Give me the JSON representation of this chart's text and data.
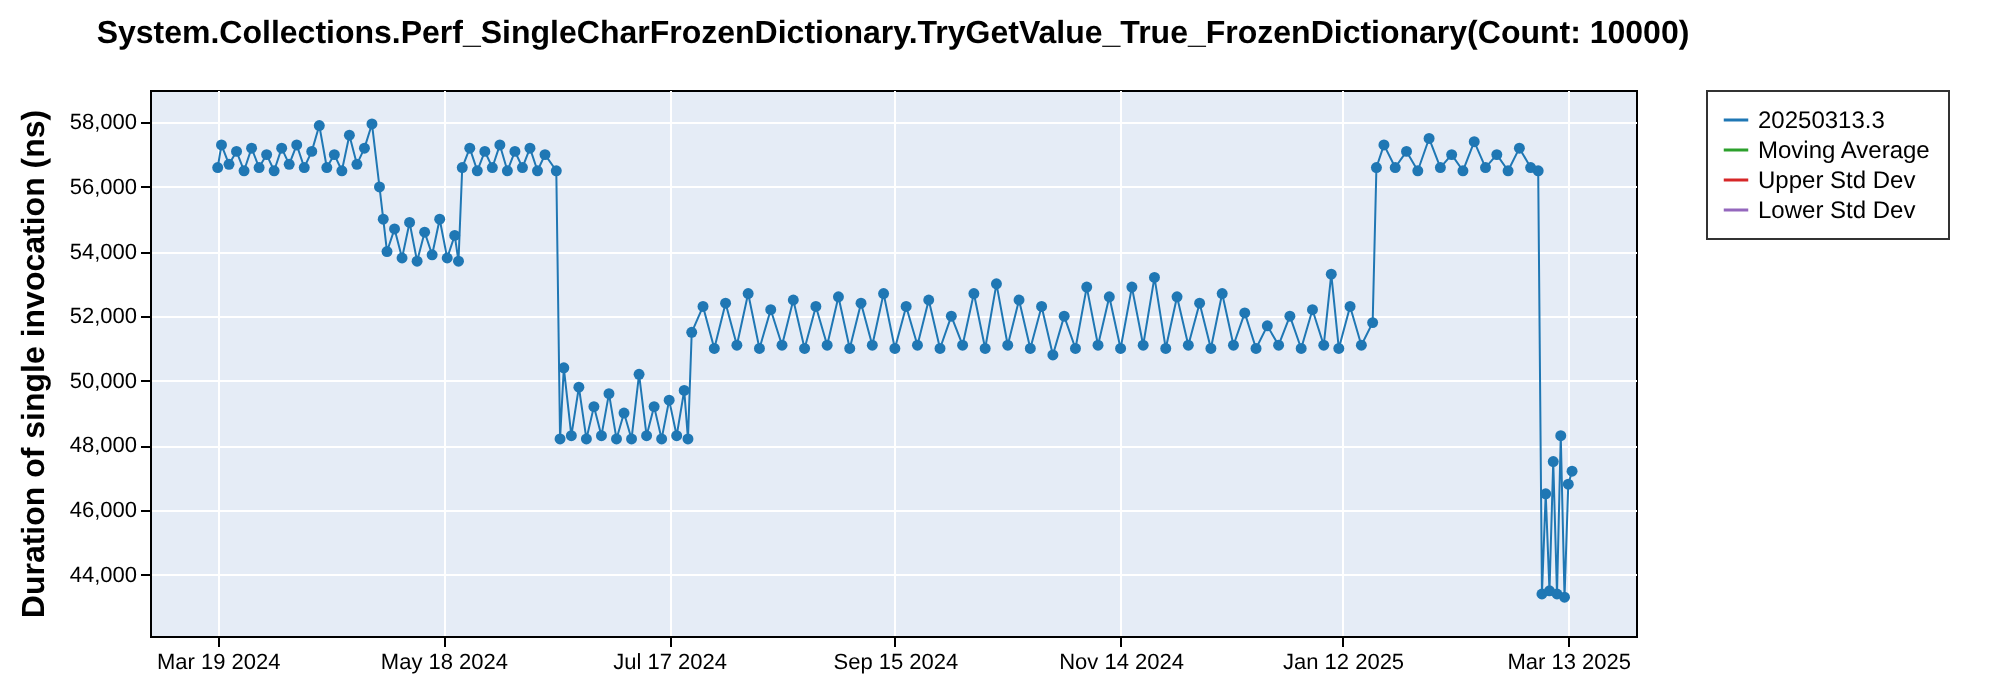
{
  "chart_data": {
    "type": "line",
    "title": "System.Collections.Perf_SingleCharFrozenDictionary.TryGetValue_True_FrozenDictionary(Count: 10000)",
    "ylabel": "Duration of single invocation (ns)",
    "x": [
      "2024-03-19",
      "2024-03-20",
      "2024-03-22",
      "2024-03-24",
      "2024-03-26",
      "2024-03-28",
      "2024-03-30",
      "2024-04-01",
      "2024-04-03",
      "2024-04-05",
      "2024-04-07",
      "2024-04-09",
      "2024-04-11",
      "2024-04-13",
      "2024-04-15",
      "2024-04-17",
      "2024-04-19",
      "2024-04-21",
      "2024-04-23",
      "2024-04-25",
      "2024-04-27",
      "2024-04-29",
      "2024-05-01",
      "2024-05-02",
      "2024-05-03",
      "2024-05-05",
      "2024-05-07",
      "2024-05-09",
      "2024-05-11",
      "2024-05-13",
      "2024-05-15",
      "2024-05-17",
      "2024-05-19",
      "2024-05-21",
      "2024-05-22",
      "2024-05-23",
      "2024-05-25",
      "2024-05-27",
      "2024-05-29",
      "2024-05-31",
      "2024-06-02",
      "2024-06-04",
      "2024-06-06",
      "2024-06-08",
      "2024-06-10",
      "2024-06-12",
      "2024-06-14",
      "2024-06-17",
      "2024-06-18",
      "2024-06-19",
      "2024-06-21",
      "2024-06-23",
      "2024-06-25",
      "2024-06-27",
      "2024-06-29",
      "2024-07-01",
      "2024-07-03",
      "2024-07-05",
      "2024-07-07",
      "2024-07-09",
      "2024-07-11",
      "2024-07-13",
      "2024-07-15",
      "2024-07-17",
      "2024-07-19",
      "2024-07-21",
      "2024-07-22",
      "2024-07-23",
      "2024-07-26",
      "2024-07-29",
      "2024-08-01",
      "2024-08-04",
      "2024-08-07",
      "2024-08-10",
      "2024-08-13",
      "2024-08-16",
      "2024-08-19",
      "2024-08-22",
      "2024-08-25",
      "2024-08-28",
      "2024-08-31",
      "2024-09-03",
      "2024-09-06",
      "2024-09-09",
      "2024-09-12",
      "2024-09-15",
      "2024-09-18",
      "2024-09-21",
      "2024-09-24",
      "2024-09-27",
      "2024-09-30",
      "2024-10-03",
      "2024-10-06",
      "2024-10-09",
      "2024-10-12",
      "2024-10-15",
      "2024-10-18",
      "2024-10-21",
      "2024-10-24",
      "2024-10-27",
      "2024-10-30",
      "2024-11-02",
      "2024-11-05",
      "2024-11-08",
      "2024-11-11",
      "2024-11-14",
      "2024-11-17",
      "2024-11-20",
      "2024-11-23",
      "2024-11-26",
      "2024-11-29",
      "2024-12-02",
      "2024-12-05",
      "2024-12-08",
      "2024-12-11",
      "2024-12-14",
      "2024-12-17",
      "2024-12-20",
      "2024-12-23",
      "2024-12-26",
      "2024-12-29",
      "2025-01-01",
      "2025-01-04",
      "2025-01-07",
      "2025-01-09",
      "2025-01-11",
      "2025-01-14",
      "2025-01-17",
      "2025-01-20",
      "2025-01-21",
      "2025-01-23",
      "2025-01-26",
      "2025-01-29",
      "2025-02-01",
      "2025-02-04",
      "2025-02-07",
      "2025-02-10",
      "2025-02-13",
      "2025-02-16",
      "2025-02-19",
      "2025-02-22",
      "2025-02-25",
      "2025-02-28",
      "2025-03-03",
      "2025-03-05",
      "2025-03-06",
      "2025-03-07",
      "2025-03-08",
      "2025-03-09",
      "2025-03-10",
      "2025-03-11",
      "2025-03-12",
      "2025-03-13",
      "2025-03-14"
    ],
    "series": [
      {
        "name": "20250313.3",
        "color": "#1f77b4",
        "values": [
          56600,
          57300,
          56700,
          57100,
          56500,
          57200,
          56600,
          57000,
          56500,
          57200,
          56700,
          57300,
          56600,
          57100,
          57900,
          56600,
          57000,
          56500,
          57600,
          56700,
          57200,
          57950,
          56000,
          55000,
          54000,
          54700,
          53800,
          54900,
          53700,
          54600,
          53900,
          55000,
          53800,
          54500,
          53700,
          56600,
          57200,
          56500,
          57100,
          56600,
          57300,
          56500,
          57100,
          56600,
          57200,
          56500,
          57000,
          56500,
          48200,
          50400,
          48300,
          49800,
          48200,
          49200,
          48300,
          49600,
          48200,
          49000,
          48200,
          50200,
          48300,
          49200,
          48200,
          49400,
          48300,
          49700,
          48200,
          51500,
          52300,
          51000,
          52400,
          51100,
          52700,
          51000,
          52200,
          51100,
          52500,
          51000,
          52300,
          51100,
          52600,
          51000,
          52400,
          51100,
          52700,
          51000,
          52300,
          51100,
          52500,
          51000,
          52000,
          51100,
          52700,
          51000,
          53000,
          51100,
          52500,
          51000,
          52300,
          50800,
          52000,
          51000,
          52900,
          51100,
          52600,
          51000,
          52900,
          51100,
          53200,
          51000,
          52600,
          51100,
          52400,
          51000,
          52700,
          51100,
          52100,
          51000,
          51700,
          51100,
          52000,
          51000,
          52200,
          51100,
          53300,
          51000,
          52300,
          51100,
          51800,
          56600,
          57300,
          56600,
          57100,
          56500,
          57500,
          56600,
          57000,
          56500,
          57400,
          56600,
          57000,
          56500,
          57200,
          56600,
          56500,
          43400,
          46500,
          43500,
          47500,
          43400,
          48300,
          43300,
          46800,
          47200
        ]
      },
      {
        "name": "Moving Average",
        "color": "#2ca02c",
        "values": [
          null,
          null,
          null,
          null,
          null,
          null,
          null,
          null,
          null,
          null,
          null,
          null,
          null,
          null,
          null,
          null,
          null,
          null,
          null,
          null,
          null,
          null,
          null,
          null,
          null,
          null,
          null,
          null,
          null,
          null,
          null,
          null,
          null,
          null,
          null,
          null,
          null,
          null,
          null,
          null,
          null,
          null,
          null,
          null,
          null,
          null,
          null,
          null,
          null,
          null,
          null,
          null,
          null,
          null,
          null,
          null,
          null,
          null,
          null,
          null,
          null,
          null,
          null,
          null,
          null,
          null,
          null,
          null,
          null,
          null,
          null,
          null,
          null,
          null,
          null,
          null,
          null,
          null,
          null,
          null,
          null,
          null,
          null,
          null,
          null,
          null,
          null,
          null,
          null,
          null,
          null,
          null,
          null,
          null,
          null,
          null,
          null,
          null,
          null,
          null,
          null,
          null,
          null,
          null,
          null,
          null,
          null,
          null,
          null,
          null,
          null,
          null,
          null,
          null,
          null,
          null,
          null,
          null,
          null,
          null,
          null,
          null,
          null,
          null,
          null,
          null,
          null,
          null,
          null,
          null,
          null,
          null,
          null,
          null,
          null,
          null,
          null,
          null,
          null,
          null,
          null,
          null,
          null,
          null,
          null,
          null,
          null,
          null,
          null,
          null,
          null,
          null,
          null,
          null
        ]
      },
      {
        "name": "Upper Std Dev",
        "color": "#d62728",
        "values": [
          null,
          null,
          null,
          null,
          null,
          null,
          null,
          null,
          null,
          null,
          null,
          null,
          null,
          null,
          null,
          null,
          null,
          null,
          null,
          null,
          null,
          null,
          null,
          null,
          null,
          null,
          null,
          null,
          null,
          null,
          null,
          null,
          null,
          null,
          null,
          null,
          null,
          null,
          null,
          null,
          null,
          null,
          null,
          null,
          null,
          null,
          null,
          null,
          null,
          null,
          null,
          null,
          null,
          null,
          null,
          null,
          null,
          null,
          null,
          null,
          null,
          null,
          null,
          null,
          null,
          null,
          null,
          null,
          null,
          null,
          null,
          null,
          null,
          null,
          null,
          null,
          null,
          null,
          null,
          null,
          null,
          null,
          null,
          null,
          null,
          null,
          null,
          null,
          null,
          null,
          null,
          null,
          null,
          null,
          null,
          null,
          null,
          null,
          null,
          null,
          null,
          null,
          null,
          null,
          null,
          null,
          null,
          null,
          null,
          null,
          null,
          null,
          null,
          null,
          null,
          null,
          null,
          null,
          null,
          null,
          null,
          null,
          null,
          null,
          null,
          null,
          null,
          null,
          null,
          null,
          null,
          null,
          null,
          null,
          null,
          null,
          null,
          null,
          null,
          null,
          null,
          null,
          null,
          null,
          null,
          null,
          null,
          null,
          null,
          null,
          null,
          null,
          null,
          null
        ]
      },
      {
        "name": "Lower Std Dev",
        "color": "#9467bd",
        "values": [
          null,
          null,
          null,
          null,
          null,
          null,
          null,
          null,
          null,
          null,
          null,
          null,
          null,
          null,
          null,
          null,
          null,
          null,
          null,
          null,
          null,
          null,
          null,
          null,
          null,
          null,
          null,
          null,
          null,
          null,
          null,
          null,
          null,
          null,
          null,
          null,
          null,
          null,
          null,
          null,
          null,
          null,
          null,
          null,
          null,
          null,
          null,
          null,
          null,
          null,
          null,
          null,
          null,
          null,
          null,
          null,
          null,
          null,
          null,
          null,
          null,
          null,
          null,
          null,
          null,
          null,
          null,
          null,
          null,
          null,
          null,
          null,
          null,
          null,
          null,
          null,
          null,
          null,
          null,
          null,
          null,
          null,
          null,
          null,
          null,
          null,
          null,
          null,
          null,
          null,
          null,
          null,
          null,
          null,
          null,
          null,
          null,
          null,
          null,
          null,
          null,
          null,
          null,
          null,
          null,
          null,
          null,
          null,
          null,
          null,
          null,
          null,
          null,
          null,
          null,
          null,
          null,
          null,
          null,
          null,
          null,
          null,
          null,
          null,
          null,
          null,
          null,
          null,
          null,
          null,
          null,
          null,
          null,
          null,
          null,
          null,
          null,
          null,
          null,
          null,
          null,
          null,
          null,
          null,
          null,
          null,
          null,
          null,
          null,
          null,
          null,
          null,
          null,
          null
        ]
      }
    ],
    "xlim": [
      "2024-03-01",
      "2025-03-31"
    ],
    "xticks": [
      {
        "value": "2024-03-19",
        "label": "Mar 19 2024"
      },
      {
        "value": "2024-05-18",
        "label": "May 18 2024"
      },
      {
        "value": "2024-07-17",
        "label": "Jul 17 2024"
      },
      {
        "value": "2024-09-15",
        "label": "Sep 15 2024"
      },
      {
        "value": "2024-11-14",
        "label": "Nov 14 2024"
      },
      {
        "value": "2025-01-12",
        "label": "Jan 12 2025"
      },
      {
        "value": "2025-03-13",
        "label": "Mar 13 2025"
      }
    ],
    "ylim": [
      42100,
      59000
    ],
    "yticks": [
      {
        "value": 44000,
        "label": "44,000"
      },
      {
        "value": 46000,
        "label": "46,000"
      },
      {
        "value": 48000,
        "label": "48,000"
      },
      {
        "value": 50000,
        "label": "50,000"
      },
      {
        "value": 52000,
        "label": "52,000"
      },
      {
        "value": 54000,
        "label": "54,000"
      },
      {
        "value": 56000,
        "label": "56,000"
      },
      {
        "value": 58000,
        "label": "58,000"
      }
    ],
    "grid": true,
    "legend": "right",
    "marker": "circle",
    "line_style": "solid"
  }
}
